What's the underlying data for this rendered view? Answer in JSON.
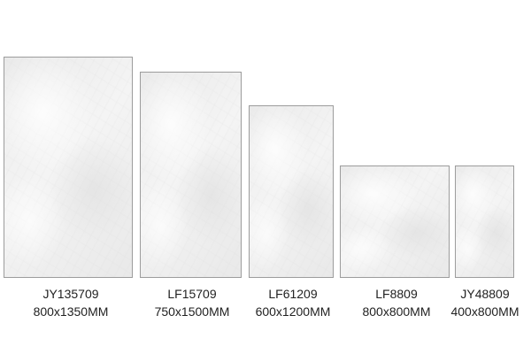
{
  "tiles": [
    {
      "code": "JY135709",
      "size": "800x1350MM"
    },
    {
      "code": "LF15709",
      "size": "750x1500MM"
    },
    {
      "code": "LF61209",
      "size": "600x1200MM"
    },
    {
      "code": "LF8809",
      "size": "800x800MM"
    },
    {
      "code": "JY48809",
      "size": "400x800MM"
    }
  ]
}
